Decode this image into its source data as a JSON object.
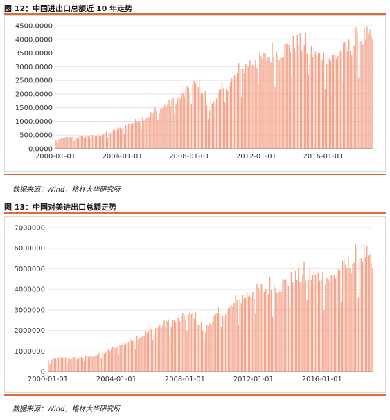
{
  "figure1": {
    "title": "图 12：中国进出口总额近 10 年走势",
    "source": "数据来源：Wind，格林大华研究所",
    "chart_data": {
      "type": "bar",
      "x_start": "2000-01",
      "x_end": "2018-12",
      "x_tick_labels": [
        "2000-01-01",
        "2004-01-01",
        "2008-01-01",
        "2012-01-01",
        "2016-01-01"
      ],
      "y_tick_labels": [
        "0.0000",
        "500.0000",
        "1000.0000",
        "1500.0000",
        "2000.0000",
        "2500.0000",
        "3000.0000",
        "3500.0000",
        "4000.0000",
        "4500.0000"
      ],
      "ylim": [
        0,
        4500
      ],
      "color": "#f4a58c",
      "grid": true,
      "year_anchors": [
        {
          "date": "2000-01",
          "value": 300
        },
        {
          "date": "2000-07",
          "value": 400
        },
        {
          "date": "2001-07",
          "value": 430
        },
        {
          "date": "2002-07",
          "value": 480
        },
        {
          "date": "2003-07",
          "value": 650
        },
        {
          "date": "2004-07",
          "value": 930
        },
        {
          "date": "2005-07",
          "value": 1200
        },
        {
          "date": "2006-07",
          "value": 1550
        },
        {
          "date": "2007-07",
          "value": 1900
        },
        {
          "date": "2008-07",
          "value": 2450
        },
        {
          "date": "2008-12",
          "value": 1900
        },
        {
          "date": "2009-02",
          "value": 1400
        },
        {
          "date": "2009-07",
          "value": 1850
        },
        {
          "date": "2010-07",
          "value": 2500
        },
        {
          "date": "2011-07",
          "value": 3100
        },
        {
          "date": "2012-07",
          "value": 3300
        },
        {
          "date": "2013-07",
          "value": 3600
        },
        {
          "date": "2014-07",
          "value": 3900
        },
        {
          "date": "2015-07",
          "value": 3400
        },
        {
          "date": "2016-07",
          "value": 3300
        },
        {
          "date": "2017-07",
          "value": 3700
        },
        {
          "date": "2018-07",
          "value": 4150
        },
        {
          "date": "2018-12",
          "value": 3850
        }
      ]
    }
  },
  "figure2": {
    "title": "图 13：中国对美进出口总额走势",
    "source": "数据来源：Wind，格林大华研究所",
    "chart_data": {
      "type": "bar",
      "x_start": "2000-01",
      "x_end": "2018-12",
      "x_tick_labels": [
        "2000-01-01",
        "2004-01-01",
        "2008-01-01",
        "2012-01-01",
        "2016-01-01"
      ],
      "y_tick_labels": [
        "0",
        "1000000",
        "2000000",
        "3000000",
        "4000000",
        "5000000",
        "6000000",
        "7000000"
      ],
      "ylim": [
        0,
        7000000
      ],
      "color": "#f4a58c",
      "grid": true,
      "year_anchors": [
        {
          "date": "2000-01",
          "value": 500000
        },
        {
          "date": "2000-07",
          "value": 650000
        },
        {
          "date": "2001-07",
          "value": 650000
        },
        {
          "date": "2002-07",
          "value": 750000
        },
        {
          "date": "2003-07",
          "value": 1000000
        },
        {
          "date": "2004-07",
          "value": 1400000
        },
        {
          "date": "2005-07",
          "value": 1800000
        },
        {
          "date": "2006-07",
          "value": 2200000
        },
        {
          "date": "2007-07",
          "value": 2500000
        },
        {
          "date": "2008-07",
          "value": 2800000
        },
        {
          "date": "2009-02",
          "value": 1900000
        },
        {
          "date": "2009-07",
          "value": 2500000
        },
        {
          "date": "2010-07",
          "value": 3000000
        },
        {
          "date": "2011-07",
          "value": 3700000
        },
        {
          "date": "2012-07",
          "value": 4000000
        },
        {
          "date": "2013-07",
          "value": 4200000
        },
        {
          "date": "2014-07",
          "value": 4600000
        },
        {
          "date": "2015-07",
          "value": 4700000
        },
        {
          "date": "2016-07",
          "value": 4500000
        },
        {
          "date": "2017-07",
          "value": 5200000
        },
        {
          "date": "2018-07",
          "value": 5800000
        },
        {
          "date": "2018-12",
          "value": 4800000
        }
      ]
    }
  }
}
